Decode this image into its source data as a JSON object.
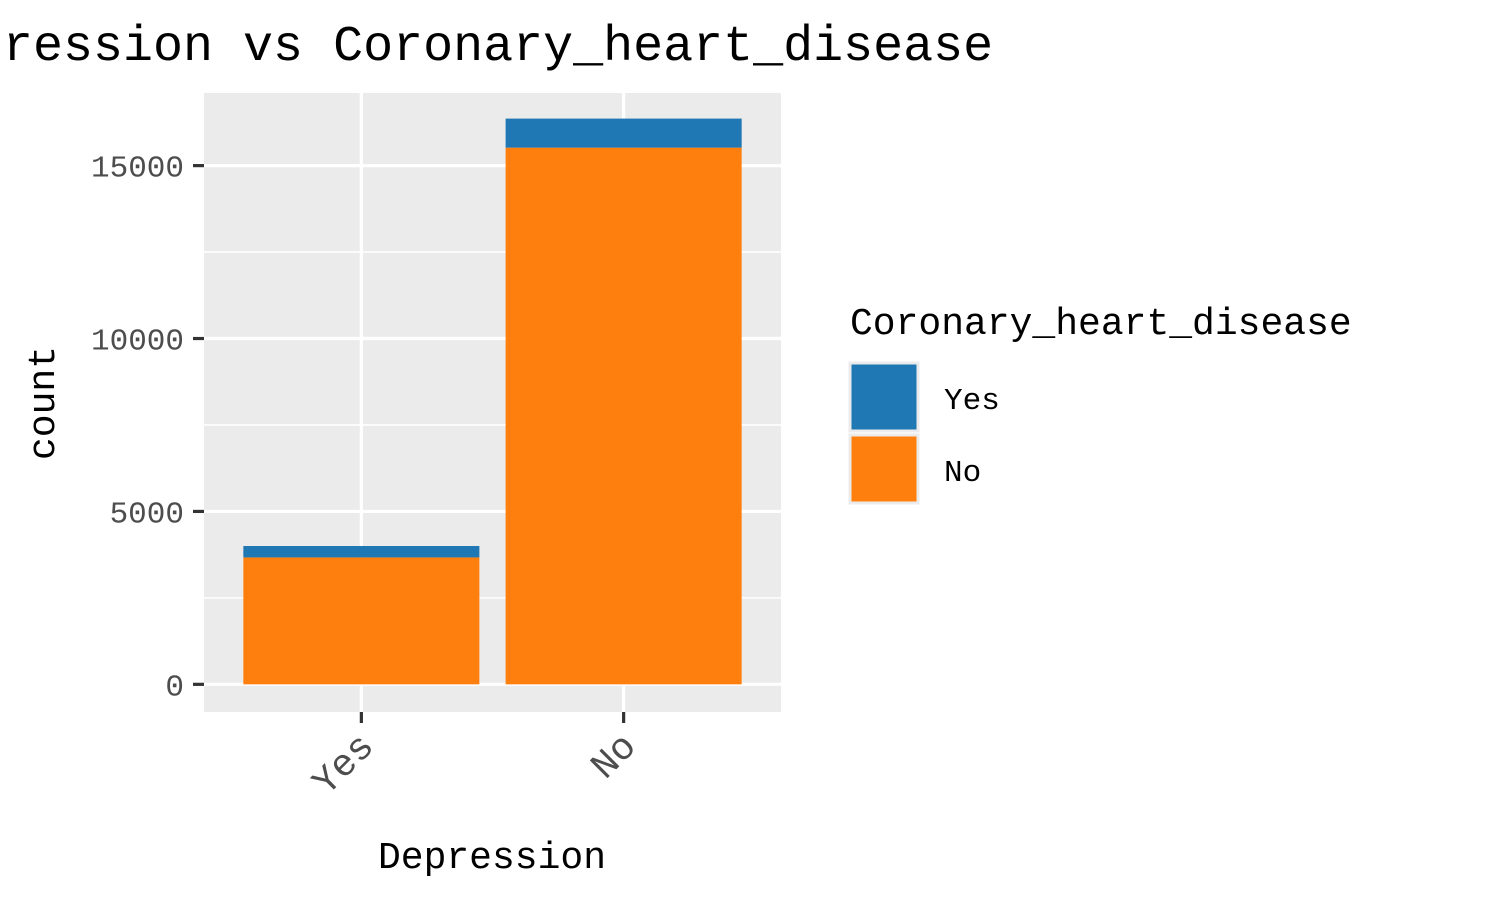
{
  "chart_data": {
    "type": "bar",
    "stacked": true,
    "title": "Depression vs Coronary_heart_disease",
    "xlabel": "Depression",
    "ylabel": "count",
    "categories": [
      "Yes",
      "No"
    ],
    "series": [
      {
        "name": "Yes",
        "values": [
          330,
          840
        ]
      },
      {
        "name": "No",
        "values": [
          3670,
          15520
        ]
      }
    ],
    "ylim": [
      -800,
      17100
    ],
    "yticks": [
      0,
      5000,
      10000,
      15000
    ],
    "ytick_labels": [
      "0",
      "5000",
      "10000",
      "15000"
    ],
    "yminor": [
      2500,
      7500,
      12500
    ],
    "grid": true,
    "legend": {
      "title": "Coronary_heart_disease",
      "position": "right",
      "entries": [
        "Yes",
        "No"
      ]
    },
    "colors": {
      "Yes": "#1f77b4",
      "No": "#ff7f0e",
      "panel": "#ebebeb",
      "grid": "#ffffff"
    }
  }
}
